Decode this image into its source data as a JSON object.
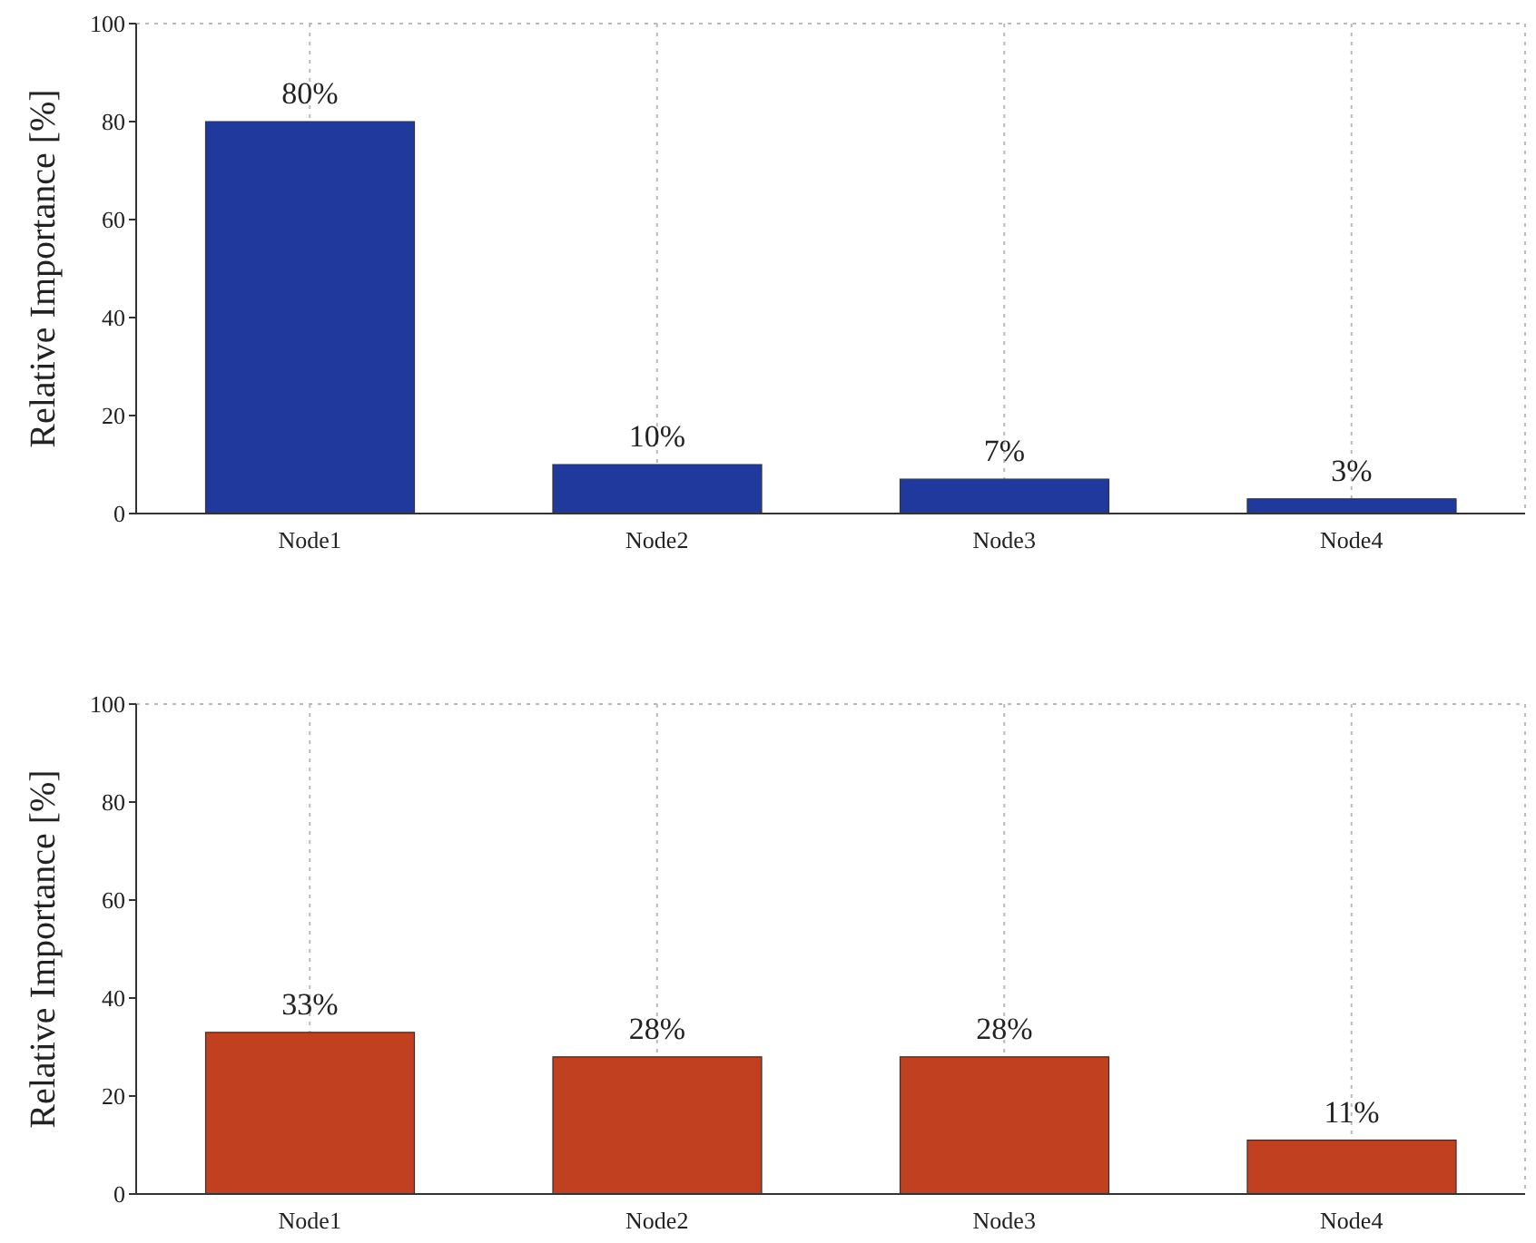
{
  "chart_data": [
    {
      "type": "bar",
      "categories": [
        "Node1",
        "Node2",
        "Node3",
        "Node4"
      ],
      "values": [
        80,
        10,
        7,
        3
      ],
      "color": "#1f3a9c",
      "value_labels": [
        "80%",
        "10%",
        "7%",
        "3%"
      ],
      "ylabel": "Relative Importance [%]",
      "ylim": [
        0,
        100
      ],
      "yticks": [
        0,
        20,
        40,
        60,
        80,
        100
      ],
      "grid": true
    },
    {
      "type": "bar",
      "categories": [
        "Node1",
        "Node2",
        "Node3",
        "Node4"
      ],
      "values": [
        33,
        28,
        28,
        11
      ],
      "color": "#c0401f",
      "value_labels": [
        "33%",
        "28%",
        "28%",
        "11%"
      ],
      "ylabel": "Relative Importance [%]",
      "ylim": [
        0,
        100
      ],
      "yticks": [
        0,
        20,
        40,
        60,
        80,
        100
      ],
      "grid": true
    }
  ]
}
